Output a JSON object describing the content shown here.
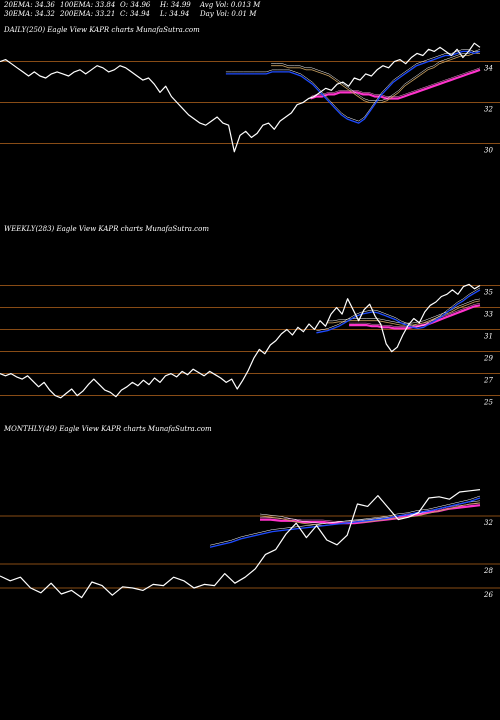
{
  "header": {
    "ema20": "20EMA: 34.36",
    "ema100": "100EMA: 33.84",
    "open": "O: 34.96",
    "high": "H: 34.99",
    "avg_vol": "Avg Vol: 0.013 M",
    "ema30": "30EMA: 34.32",
    "ema200": "200EMA: 33.21",
    "close": "C: 34.94",
    "low": "L: 34.94",
    "day_vol": "Day Vol: 0.01 M"
  },
  "colors": {
    "background": "#000000",
    "price": "#ffffff",
    "ema_short": "#1e4bff",
    "ema_long": "#ff33cc",
    "level_line": "#b5651d",
    "ema_mid": "#c8a060"
  },
  "chart_data": [
    {
      "type": "line",
      "label": "DAILY(250) Eagle  View  KAPR charts MunafaSutra.com",
      "ylim": [
        29.2,
        35.3
      ],
      "yticks": [
        "34",
        "32",
        "30"
      ],
      "ytick_values": [
        34,
        32,
        30
      ],
      "levels": [
        34.0,
        32.0,
        30.0
      ],
      "series": [
        {
          "values": [
            34.0,
            34.1,
            33.9,
            33.7,
            33.5,
            33.3,
            33.5,
            33.3,
            33.2,
            33.4,
            33.5,
            33.4,
            33.3,
            33.5,
            33.6,
            33.4,
            33.6,
            33.8,
            33.7,
            33.5,
            33.6,
            33.8,
            33.7,
            33.5,
            33.3,
            33.1,
            33.2,
            32.9,
            32.5,
            32.8,
            32.3,
            32.0,
            31.7,
            31.4,
            31.2,
            31.0,
            30.9,
            31.1,
            31.3,
            31.0,
            30.9,
            29.6,
            30.4,
            30.6,
            30.3,
            30.5,
            30.9,
            31.0,
            30.7,
            31.1,
            31.3,
            31.5,
            31.9,
            32.0,
            32.2,
            32.3,
            32.5,
            32.7,
            32.6,
            32.9,
            33.0,
            32.8,
            33.2,
            33.1,
            33.4,
            33.3,
            33.6,
            33.8,
            33.7,
            34.0,
            34.1,
            33.9,
            34.2,
            34.4,
            34.3,
            34.6,
            34.5,
            34.7,
            34.5,
            34.3,
            34.6,
            34.2,
            34.5,
            34.9,
            34.7
          ]
        },
        {
          "values": [
            33.4,
            33.4,
            33.4,
            33.4,
            33.4,
            33.4,
            33.4,
            33.4,
            33.5,
            33.5,
            33.5,
            33.5,
            33.4,
            33.3,
            33.1,
            32.9,
            32.6,
            32.3,
            32.0,
            31.7,
            31.4,
            31.2,
            31.1,
            31.0,
            31.2,
            31.6,
            32.0,
            32.4,
            32.7,
            33.0,
            33.2,
            33.4,
            33.6,
            33.8,
            33.9,
            34.0,
            34.1,
            34.2,
            34.3,
            34.3,
            34.4,
            34.5,
            34.5,
            34.4,
            34.5
          ]
        },
        {
          "values": [
            33.8,
            33.8,
            33.8,
            33.7,
            33.7,
            33.7,
            33.6,
            33.6,
            33.5,
            33.4,
            33.3,
            33.1,
            32.9,
            32.7,
            32.5,
            32.3,
            32.1,
            32.0,
            32.0,
            32.0,
            32.1,
            32.3,
            32.5,
            32.8,
            33.0,
            33.2,
            33.4,
            33.6,
            33.7,
            33.9,
            34.0,
            34.1,
            34.2,
            34.3,
            34.3,
            34.4,
            34.4
          ]
        },
        {
          "values": [
            32.2,
            32.3,
            32.3,
            32.4,
            32.4,
            32.5,
            32.5,
            32.5,
            32.5,
            32.4,
            32.4,
            32.3,
            32.3,
            32.2,
            32.2,
            32.2,
            32.3,
            32.4,
            32.5,
            32.6,
            32.7,
            32.8,
            32.9,
            33.0,
            33.1,
            33.2,
            33.3,
            33.4,
            33.5,
            33.6
          ]
        }
      ]
    },
    {
      "type": "line",
      "label": "WEEKLY(283) Eagle  View  KAPR charts MunafaSutra.com",
      "ylim": [
        24.6,
        35.5
      ],
      "yticks": [
        "35",
        "33",
        "31",
        "29",
        "27",
        "25"
      ],
      "ytick_values": [
        35,
        33,
        31,
        29,
        27,
        25
      ],
      "levels": [
        35,
        33,
        31,
        29,
        27,
        25
      ],
      "series": [
        {
          "values": [
            27.0,
            26.8,
            27.0,
            26.7,
            26.5,
            26.8,
            26.3,
            25.8,
            26.2,
            25.5,
            25.0,
            24.8,
            25.2,
            25.6,
            25.0,
            25.4,
            26.0,
            26.5,
            26.0,
            25.5,
            25.3,
            24.9,
            25.5,
            25.8,
            26.2,
            25.9,
            26.4,
            26.0,
            26.6,
            26.2,
            26.8,
            27.0,
            26.7,
            27.2,
            26.9,
            27.4,
            27.1,
            26.8,
            27.2,
            26.9,
            26.6,
            26.2,
            26.5,
            25.6,
            26.4,
            27.3,
            28.4,
            29.2,
            28.8,
            29.6,
            30.0,
            30.6,
            31.0,
            30.5,
            31.2,
            30.8,
            31.5,
            31.0,
            31.8,
            31.3,
            32.4,
            33.0,
            32.4,
            33.8,
            32.8,
            31.8,
            32.8,
            33.3,
            32.2,
            31.5,
            29.7,
            29.0,
            29.4,
            30.5,
            31.4,
            32.0,
            31.6,
            32.6,
            33.2,
            33.5,
            34.0,
            34.2,
            34.6,
            34.2,
            34.9,
            35.1,
            34.7,
            35.0
          ]
        },
        {
          "values": [
            30.7,
            30.8,
            30.9,
            31.1,
            31.3,
            31.6,
            31.9,
            32.2,
            32.4,
            32.5,
            32.6,
            32.5,
            32.3,
            32.1,
            31.9,
            31.6,
            31.4,
            31.2,
            31.1,
            31.2,
            31.5,
            31.8,
            32.1,
            32.5,
            32.9,
            33.3,
            33.6,
            34.0,
            34.3,
            34.6
          ]
        },
        {
          "values": [
            31.6,
            31.6,
            31.7,
            31.7,
            31.8,
            31.8,
            31.8,
            31.8,
            31.8,
            31.8,
            31.7,
            31.6,
            31.5,
            31.4,
            31.4,
            31.4,
            31.5,
            31.6,
            31.8,
            32.0,
            32.2,
            32.4,
            32.6,
            32.9,
            33.1,
            33.3,
            33.5,
            33.6
          ]
        },
        {
          "values": [
            31.4,
            31.4,
            31.4,
            31.4,
            31.3,
            31.3,
            31.2,
            31.2,
            31.1,
            31.1,
            31.1,
            31.2,
            31.3,
            31.4,
            31.5,
            31.7,
            31.9,
            32.1,
            32.3,
            32.5,
            32.7,
            32.9,
            33.1,
            33.2
          ]
        }
      ]
    },
    {
      "type": "line",
      "label": "MONTHLY(49) Eagle  View  KAPR charts MunafaSutra.com",
      "ylim": [
        25.0,
        35.0
      ],
      "yticks": [
        "32",
        "28",
        "26"
      ],
      "ytick_values": [
        32,
        28,
        26
      ],
      "levels": [
        32,
        28,
        26
      ],
      "series": [
        {
          "values": [
            27.0,
            26.6,
            26.9,
            26.0,
            25.6,
            26.4,
            25.5,
            25.8,
            25.2,
            26.5,
            26.2,
            25.4,
            26.1,
            26.0,
            25.8,
            26.3,
            26.2,
            26.9,
            26.6,
            26.0,
            26.3,
            26.2,
            27.2,
            26.4,
            26.9,
            27.6,
            28.8,
            29.2,
            30.5,
            31.4,
            30.2,
            31.2,
            30.0,
            29.6,
            30.4,
            33.0,
            32.8,
            33.7,
            32.7,
            31.7,
            31.9,
            32.3,
            33.5,
            33.6,
            33.4,
            34.0,
            34.1,
            34.2
          ]
        },
        {
          "values": [
            29.4,
            29.6,
            29.8,
            30.1,
            30.3,
            30.5,
            30.7,
            30.8,
            30.9,
            31.0,
            31.1,
            31.2,
            31.3,
            31.4,
            31.5,
            31.6,
            31.7,
            31.8,
            32.0,
            32.1,
            32.3,
            32.4,
            32.6,
            32.8,
            33.0,
            33.2,
            33.5
          ]
        },
        {
          "values": [
            32.0,
            31.9,
            31.8,
            31.6,
            31.4,
            31.3,
            31.2,
            31.3,
            31.4,
            31.5,
            31.5,
            31.6,
            31.7,
            31.8,
            31.9,
            32.0,
            32.2,
            32.4,
            32.6,
            32.8,
            33.0,
            33.1
          ]
        },
        {
          "values": [
            31.7,
            31.7,
            31.6,
            31.6,
            31.5,
            31.5,
            31.5,
            31.4,
            31.4,
            31.4,
            31.5,
            31.6,
            31.7,
            31.8,
            32.0,
            32.1,
            32.3,
            32.4,
            32.6,
            32.7,
            32.8,
            32.9
          ]
        }
      ]
    }
  ]
}
